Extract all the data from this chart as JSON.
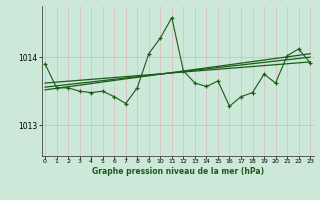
{
  "background_color": "#cce8d8",
  "plot_bg_color": "#cce8d8",
  "grid_color_h": "#aaccb8",
  "grid_color_v": "#ddbbbb",
  "line_color": "#1a5c1a",
  "xlabel": "Graphe pression niveau de la mer (hPa)",
  "ylim": [
    1012.55,
    1014.75
  ],
  "yticks": [
    1013,
    1014
  ],
  "xlim": [
    -0.3,
    23.3
  ],
  "xticks": [
    0,
    1,
    2,
    3,
    4,
    5,
    6,
    7,
    8,
    9,
    10,
    11,
    12,
    13,
    14,
    15,
    16,
    17,
    18,
    19,
    20,
    21,
    22,
    23
  ],
  "main_data": [
    1013.9,
    1013.55,
    1013.55,
    1013.5,
    1013.48,
    1013.5,
    1013.42,
    1013.32,
    1013.55,
    1014.05,
    1014.28,
    1014.58,
    1013.8,
    1013.62,
    1013.57,
    1013.65,
    1013.28,
    1013.42,
    1013.48,
    1013.75,
    1013.62,
    1014.02,
    1014.12,
    1013.92
  ],
  "trend_lines": [
    {
      "x0": 0,
      "y0": 1013.62,
      "x1": 23,
      "y1": 1013.93
    },
    {
      "x0": 0,
      "y0": 1013.56,
      "x1": 23,
      "y1": 1014.0
    },
    {
      "x0": 0,
      "y0": 1013.52,
      "x1": 23,
      "y1": 1014.05
    }
  ]
}
